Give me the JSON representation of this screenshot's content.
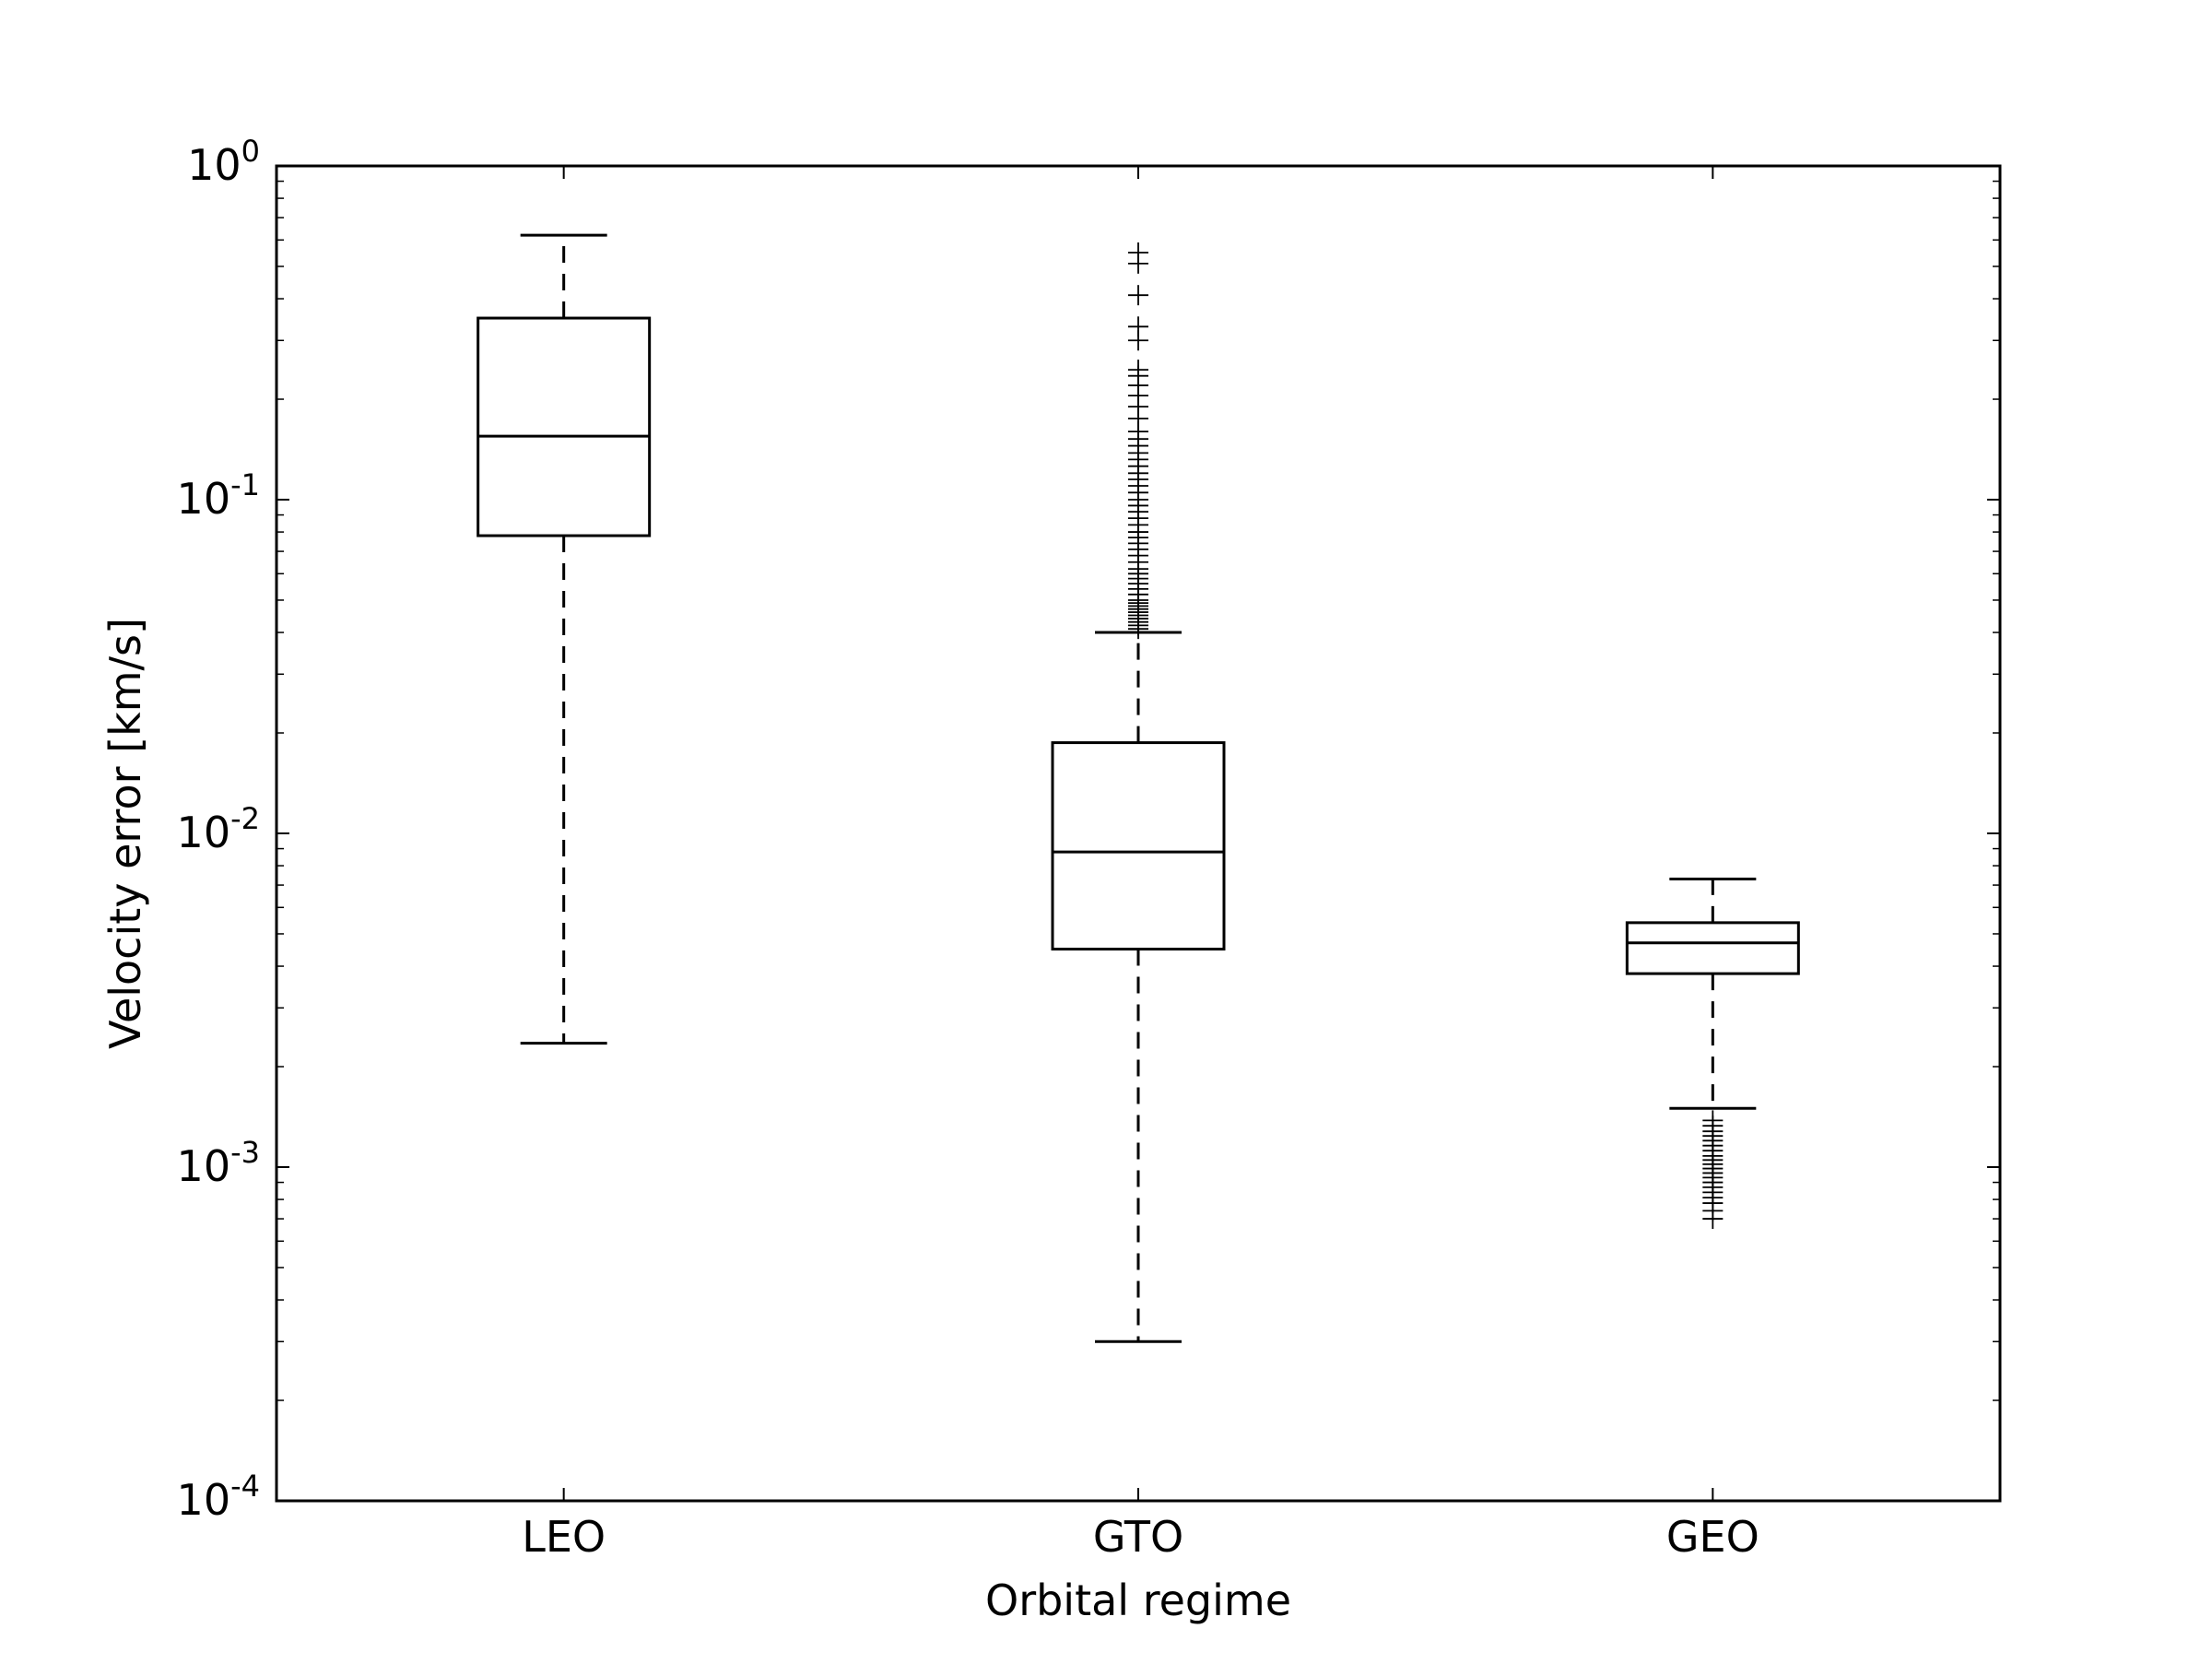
{
  "chart_data": {
    "type": "box",
    "xlabel": "Orbital regime",
    "ylabel": "Velocity error [km/s]",
    "yscale": "log",
    "ylim": [
      0.0001,
      1
    ],
    "y_ticks": [
      {
        "value": 1,
        "base": "10",
        "exp": "0"
      },
      {
        "value": 0.1,
        "base": "10",
        "exp": "-1"
      },
      {
        "value": 0.01,
        "base": "10",
        "exp": "-2"
      },
      {
        "value": 0.001,
        "base": "10",
        "exp": "-3"
      },
      {
        "value": 0.0001,
        "base": "10",
        "exp": "-4"
      }
    ],
    "categories": [
      "LEO",
      "GTO",
      "GEO"
    ],
    "boxes": [
      {
        "category": "LEO",
        "whisker_low": 0.00235,
        "q1": 0.078,
        "median": 0.155,
        "q3": 0.35,
        "whisker_high": 0.62,
        "outliers": []
      },
      {
        "category": "GTO",
        "whisker_low": 0.0003,
        "q1": 0.0045,
        "median": 0.0088,
        "q3": 0.0187,
        "whisker_high": 0.04,
        "outliers": [
          0.041,
          0.042,
          0.043,
          0.044,
          0.045,
          0.046,
          0.047,
          0.048,
          0.049,
          0.05,
          0.052,
          0.054,
          0.056,
          0.058,
          0.06,
          0.062,
          0.065,
          0.068,
          0.071,
          0.074,
          0.077,
          0.08,
          0.084,
          0.088,
          0.092,
          0.096,
          0.1,
          0.105,
          0.11,
          0.115,
          0.12,
          0.126,
          0.132,
          0.138,
          0.145,
          0.152,
          0.16,
          0.175,
          0.19,
          0.205,
          0.22,
          0.235,
          0.245,
          0.3,
          0.33,
          0.41,
          0.51,
          0.55
        ]
      },
      {
        "category": "GEO",
        "whisker_low": 0.0015,
        "q1": 0.0038,
        "median": 0.0047,
        "q3": 0.0054,
        "whisker_high": 0.0073,
        "outliers": [
          0.00138,
          0.00133,
          0.00128,
          0.00124,
          0.0012,
          0.00116,
          0.00112,
          0.00108,
          0.00105,
          0.00102,
          0.00099,
          0.00096,
          0.00093,
          0.0009,
          0.00087,
          0.00084,
          0.00081,
          0.00078,
          0.00074,
          0.0007
        ]
      }
    ],
    "grid": false,
    "legend": "none"
  }
}
